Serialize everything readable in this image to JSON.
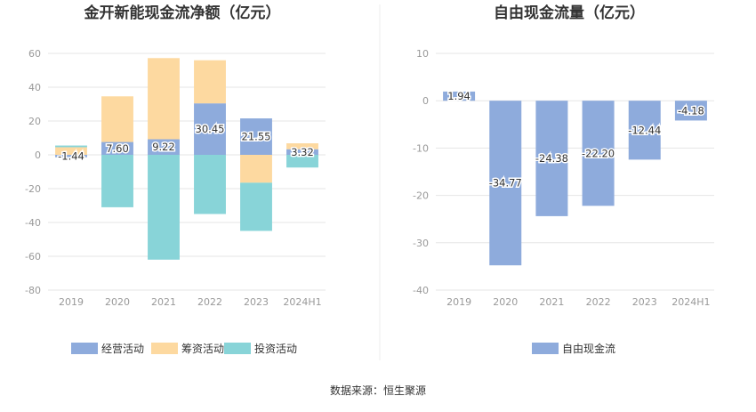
{
  "source_note": "数据来源：恒生聚源",
  "colors": {
    "operating": "#8eabdc",
    "financing": "#fdd9a0",
    "investing": "#88d4d8",
    "fcf": "#8eabdc",
    "grid": "#e6e6e6",
    "axis_text": "#999999",
    "divider": "#eeeeee"
  },
  "chart_data": [
    {
      "type": "bar",
      "stacked": true,
      "title": "金开新能现金流净额（亿元）",
      "categories": [
        "2019",
        "2020",
        "2021",
        "2022",
        "2023",
        "2024H1"
      ],
      "series": [
        {
          "name": "经营活动",
          "values": [
            -1.44,
            7.6,
            9.22,
            30.45,
            21.55,
            3.32
          ]
        },
        {
          "name": "筹资活动",
          "values": [
            4.5,
            27.0,
            48.0,
            25.5,
            -16.5,
            3.5
          ]
        },
        {
          "name": "投资活动",
          "values": [
            1.0,
            -31.0,
            -62.0,
            -35.0,
            -28.5,
            -7.5
          ]
        }
      ],
      "data_labels": [
        "-1.44",
        "7.60",
        "9.22",
        "30.45",
        "21.55",
        "3.32"
      ],
      "yticks": [
        60,
        40,
        20,
        0,
        -20,
        -40,
        -60,
        -80
      ],
      "ylim": [
        -80,
        60
      ],
      "grid": true,
      "legend": "bottom"
    },
    {
      "type": "bar",
      "title": "自由现金流量（亿元）",
      "categories": [
        "2019",
        "2020",
        "2021",
        "2022",
        "2023",
        "2024H1"
      ],
      "series": [
        {
          "name": "自由现金流",
          "values": [
            1.94,
            -34.77,
            -24.38,
            -22.2,
            -12.44,
            -4.18
          ]
        }
      ],
      "data_labels": [
        "1.94",
        "-34.77",
        "-24.38",
        "-22.20",
        "-12.44",
        "-4.18"
      ],
      "yticks": [
        10,
        0,
        -10,
        -20,
        -30,
        -40
      ],
      "ylim": [
        -40,
        10
      ],
      "grid": true,
      "legend": "bottom"
    }
  ]
}
